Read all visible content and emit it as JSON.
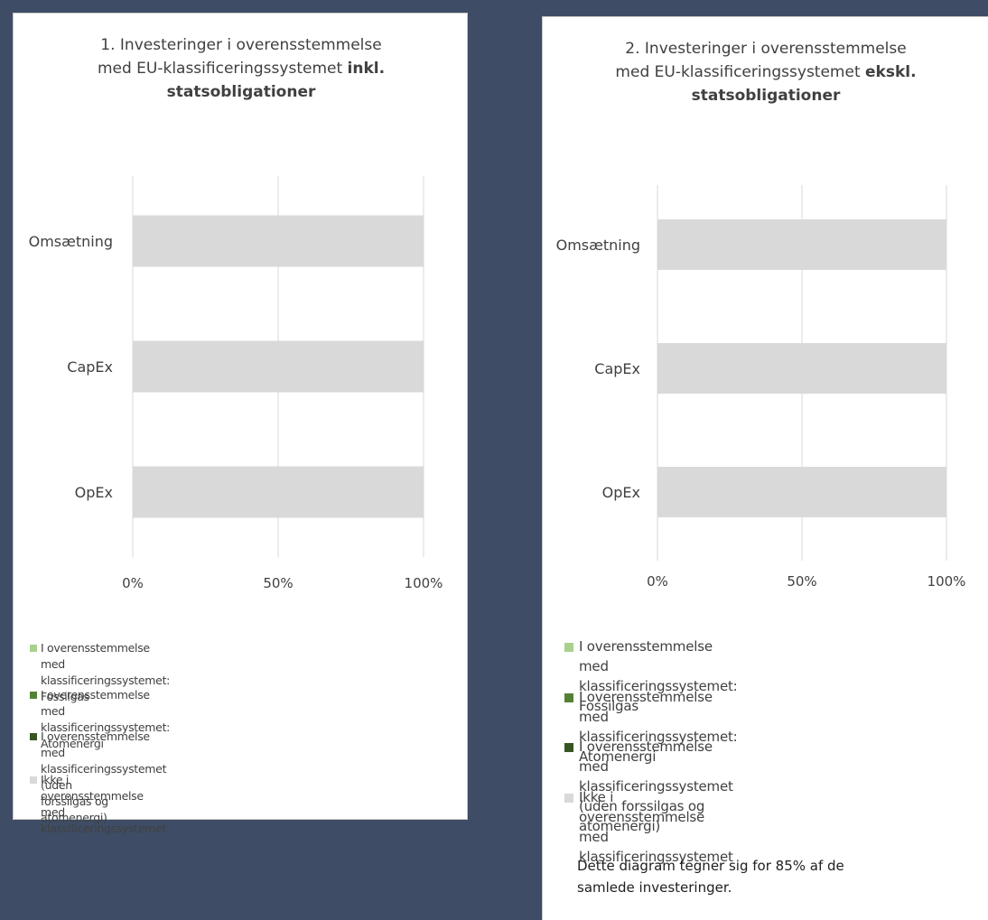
{
  "chart_data": [
    {
      "type": "bar",
      "orientation": "horizontal",
      "stacked": true,
      "title": {
        "line1": "1. Investeringer i overensstemmelse",
        "line2_normal": "med EU-klassificeringssystemet ",
        "line2_bold": "inkl.",
        "line3_bold": "statsobligationer"
      },
      "categories": [
        "Omsætning",
        "CapEx",
        "OpEx"
      ],
      "series": [
        {
          "name": "I overensstemmelse med klassificeringssystemet: Fossilgas",
          "color": "#a9d18e",
          "values": [
            0,
            0,
            0
          ]
        },
        {
          "name": "I overensstemmelse med klassificeringssystemet: Atomenergi",
          "color": "#548235",
          "values": [
            0,
            0,
            0
          ]
        },
        {
          "name": "I overensstemmelse med klassificeringssystemet (uden forssilgas og atomenergi)",
          "color": "#375623",
          "values": [
            0,
            0,
            0
          ]
        },
        {
          "name": "Ikke i overensstemmelse med klassificeringssystemet",
          "color": "#d9d9d9",
          "values": [
            100,
            100,
            100
          ]
        }
      ],
      "xlim": [
        0,
        100
      ],
      "xticks": [
        "0%",
        "50%",
        "100%"
      ],
      "grid": true,
      "legend_position": "bottom"
    },
    {
      "type": "bar",
      "orientation": "horizontal",
      "stacked": true,
      "title": {
        "line1": "2. Investeringer i overensstemmelse",
        "line2_normal": "med EU-klassificeringssystemet ",
        "line2_bold": "ekskl.",
        "line3_bold": "statsobligationer"
      },
      "categories": [
        "Omsætning",
        "CapEx",
        "OpEx"
      ],
      "series": [
        {
          "name": "I overensstemmelse med klassificeringssystemet: Fossilgas",
          "color": "#a9d18e",
          "values": [
            0,
            0,
            0
          ]
        },
        {
          "name": "I overensstemmelse med klassificeringssystemet: Atomenergi",
          "color": "#548235",
          "values": [
            0,
            0,
            0
          ]
        },
        {
          "name": "I overensstemmelse med klassificeringssystemet (uden forssilgas og atomenergi)",
          "color": "#375623",
          "values": [
            0,
            0,
            0
          ]
        },
        {
          "name": "Ikke i overensstemmelse med klassificeringssystemet",
          "color": "#d9d9d9",
          "values": [
            100,
            100,
            100
          ]
        }
      ],
      "xlim": [
        0,
        100
      ],
      "xticks": [
        "0%",
        "50%",
        "100%"
      ],
      "grid": true,
      "legend_position": "bottom",
      "footnote": "Dette diagram tegner sig for 85% af de samlede investeringer."
    }
  ],
  "legend_lines": {
    "chart1": [
      [
        "I overensstemmelse med klassificeringssystemet: Fossilgas"
      ],
      [
        "I overensstemmelse med klassificeringssystemet:",
        "Atomenergi"
      ],
      [
        "I overensstemmelse med klassificeringssystemet (uden",
        "forssilgas og atomenergi)"
      ],
      [
        "Ikke i overensstemmelse med klassificeringssystemet"
      ]
    ],
    "chart2": [
      [
        "I overensstemmelse med klassificeringssystemet:",
        "Fossilgas"
      ],
      [
        "I overensstemmelse med klassificeringssystemet:",
        "Atomenergi"
      ],
      [
        "I overensstemmelse med klassificeringssystemet",
        "(uden forssilgas og atomenergi)"
      ],
      [
        "Ikke i overensstemmelse med",
        "klassificeringssystemet"
      ]
    ],
    "footnote2": [
      "Dette diagram tegner sig for 85% af de",
      "samlede investeringer."
    ]
  }
}
